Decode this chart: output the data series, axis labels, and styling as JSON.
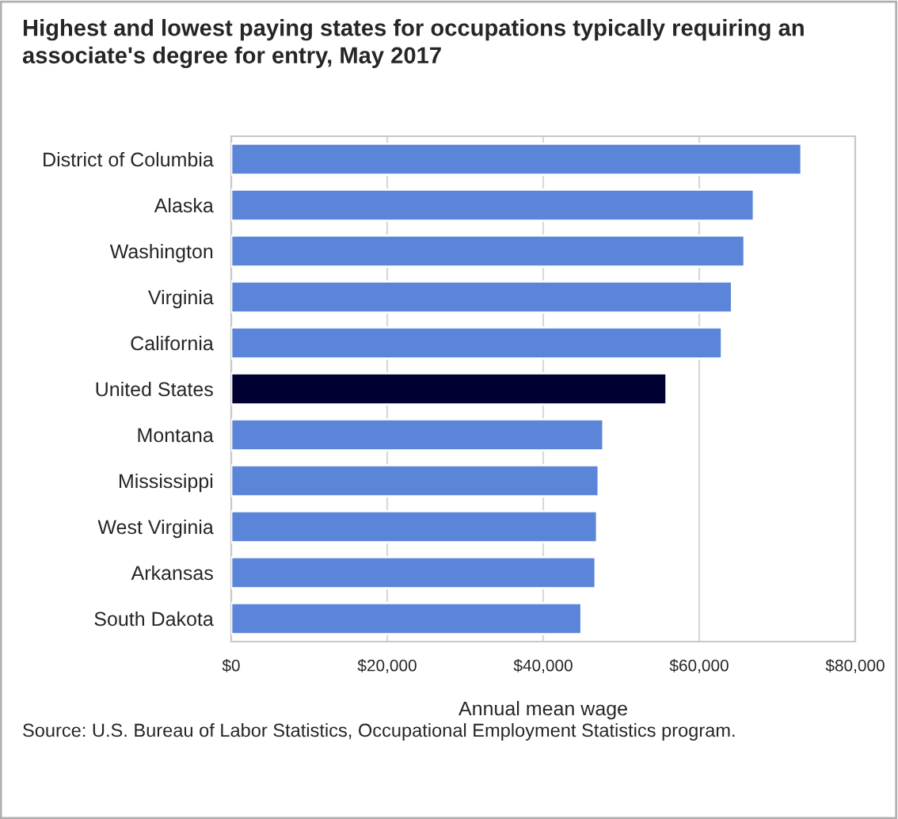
{
  "chart_data": {
    "type": "bar",
    "orientation": "horizontal",
    "title": "Highest and lowest paying states for occupations typically requiring an associate's degree for entry, May 2017",
    "xlabel": "Annual mean wage",
    "categories": [
      "District of Columbia",
      "Alaska",
      "Washington",
      "Virginia",
      "California",
      "United States",
      "Montana",
      "Mississippi",
      "West Virginia",
      "Arkansas",
      "South Dakota"
    ],
    "values": [
      73100,
      67000,
      65800,
      64200,
      62900,
      55800,
      47700,
      47100,
      46900,
      46700,
      44900
    ],
    "colors": [
      "#5b85d8",
      "#5b85d8",
      "#5b85d8",
      "#5b85d8",
      "#5b85d8",
      "#000033",
      "#5b85d8",
      "#5b85d8",
      "#5b85d8",
      "#5b85d8",
      "#5b85d8"
    ],
    "xlim": [
      0,
      80000
    ],
    "xticks": [
      {
        "value": 0,
        "label": "$0"
      },
      {
        "value": 20000,
        "label": "$20,000"
      },
      {
        "value": 40000,
        "label": "$40,000"
      },
      {
        "value": 60000,
        "label": "$60,000"
      },
      {
        "value": 80000,
        "label": "$80,000"
      }
    ],
    "grid": "x",
    "annotations": [
      "Source: U.S. Bureau of Labor Statistics, Occupational Employment Statistics program."
    ]
  }
}
